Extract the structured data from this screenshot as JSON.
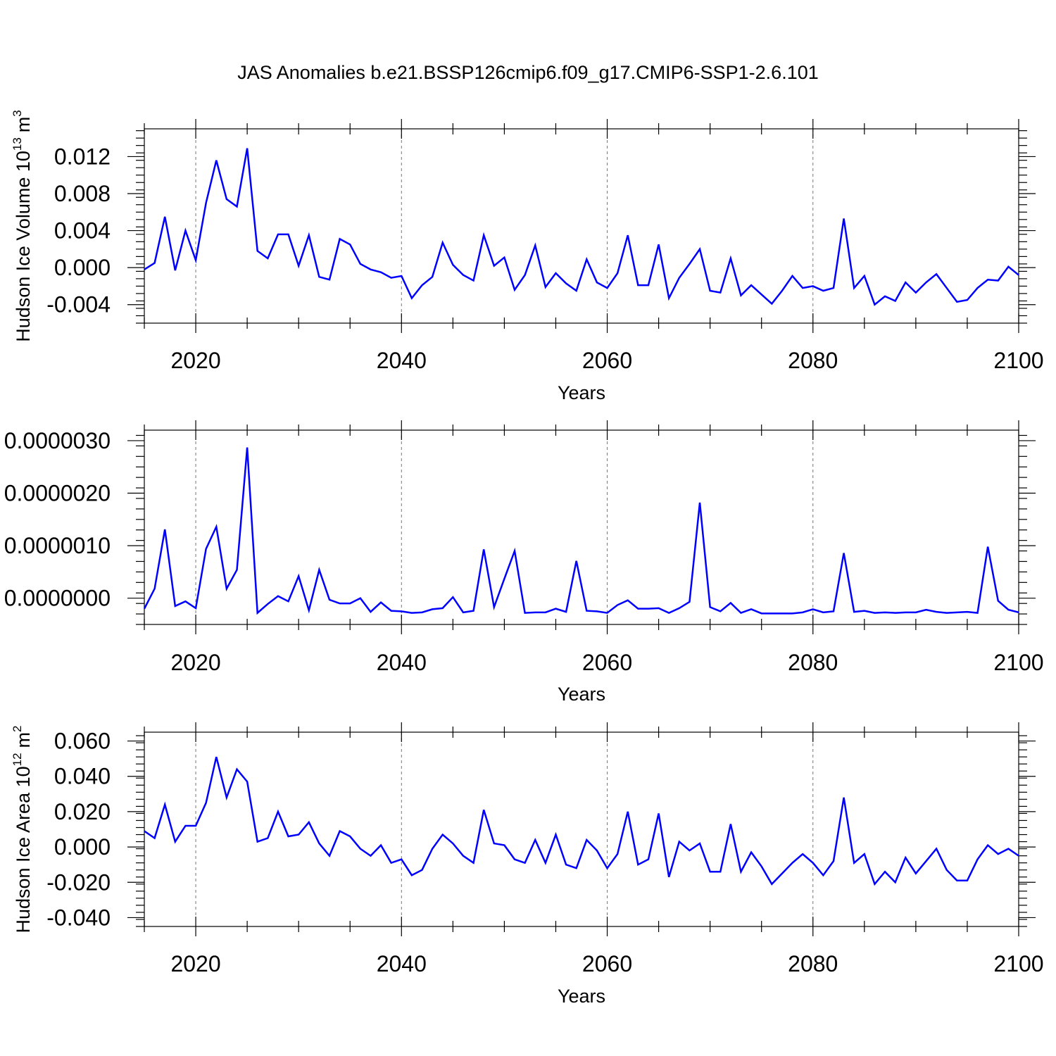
{
  "title": "JAS Anomalies b.e21.BSSP126cmip6.f09_g17.CMIP6-SSP1-2.6.101",
  "series_color": "#0000ff",
  "chart_data": [
    {
      "type": "line",
      "title": "",
      "xlabel": "Years",
      "ylabel": "Hudson Ice Volume 10",
      "ylabel_sup": "13",
      "ylabel_unit": "m",
      "ylabel_unit_sup": "3",
      "xlim": [
        2015,
        2100
      ],
      "ylim": [
        -0.006,
        0.015
      ],
      "grid": true,
      "x_ticks": [
        2020,
        2040,
        2060,
        2080,
        2100
      ],
      "y_ticks": [
        -0.004,
        0.0,
        0.004,
        0.008,
        0.012
      ],
      "x_tick_labels": [
        "2020",
        "2040",
        "2060",
        "2080",
        "2100"
      ],
      "y_tick_labels": [
        "-0.004",
        "0.000",
        "0.004",
        "0.008",
        "0.012"
      ],
      "x_start": 2015,
      "values": [
        -0.0002,
        0.0005,
        0.0055,
        -0.0003,
        0.004,
        0.0008,
        0.007,
        0.0116,
        0.0074,
        0.0066,
        0.0129,
        0.0018,
        0.001,
        0.0036,
        0.0036,
        0.0002,
        0.0035,
        -0.001,
        -0.0013,
        0.0031,
        0.0025,
        0.0004,
        -0.0002,
        -0.0005,
        -0.0011,
        -0.0009,
        -0.0033,
        -0.0019,
        -0.001,
        0.0027,
        0.0003,
        -0.0008,
        -0.0014,
        0.0035,
        0.0002,
        0.0011,
        -0.0024,
        -0.0008,
        0.0024,
        -0.0021,
        -0.0006,
        -0.0017,
        -0.0025,
        0.0009,
        -0.0016,
        -0.0022,
        -0.0006,
        0.0035,
        -0.0019,
        -0.0019,
        0.0025,
        -0.0033,
        -0.0011,
        0.0004,
        0.002,
        -0.0025,
        -0.0027,
        0.001,
        -0.003,
        -0.0019,
        -0.0029,
        -0.0039,
        -0.0025,
        -0.0009,
        -0.0022,
        -0.002,
        -0.0025,
        -0.0022,
        0.0053,
        -0.0022,
        -0.0009,
        -0.004,
        -0.0031,
        -0.0036,
        -0.0016,
        -0.0027,
        -0.0016,
        -0.0007,
        -0.0022,
        -0.0037,
        -0.0035,
        -0.0022,
        -0.0013,
        -0.0014,
        0.0001,
        -0.0008
      ]
    },
    {
      "type": "line",
      "title": "",
      "xlabel": "Years",
      "ylabel": "",
      "xlim": [
        2015,
        2100
      ],
      "ylim": [
        -5e-07,
        3.2e-06
      ],
      "grid": true,
      "x_ticks": [
        2020,
        2040,
        2060,
        2080,
        2100
      ],
      "y_ticks": [
        0.0,
        1e-06,
        2e-06,
        3e-06
      ],
      "x_tick_labels": [
        "2020",
        "2040",
        "2060",
        "2080",
        "2100"
      ],
      "y_tick_labels": [
        "0.0000000",
        "0.0000010",
        "0.0000020",
        "0.0000030"
      ],
      "x_start": 2015,
      "values": [
        -2e-07,
        1.8e-07,
        1.31e-06,
        -1.5e-07,
        -6e-08,
        -1.9e-07,
        9.4e-07,
        1.36e-06,
        1.8e-07,
        5.4e-07,
        2.87e-06,
        -2.8e-07,
        -1.1e-07,
        4e-08,
        -6e-08,
        4.2e-07,
        -2.3e-07,
        5.4e-07,
        -3e-08,
        -1e-07,
        -1e-07,
        0.0,
        -2.6e-07,
        -8e-08,
        -2.4e-07,
        -2.5e-07,
        -2.8e-07,
        -2.7e-07,
        -2.1e-07,
        -1.9e-07,
        2e-08,
        -2.7e-07,
        -2.4e-07,
        9.3e-07,
        -1.7e-07,
        3.7e-07,
        9e-07,
        -2.8e-07,
        -2.7e-07,
        -2.7e-07,
        -2e-07,
        -2.6e-07,
        7.1e-07,
        -2.4e-07,
        -2.5e-07,
        -2.8e-07,
        -1.3e-07,
        -4e-08,
        -2e-07,
        -2e-07,
        -1.9e-07,
        -2.8e-07,
        -1.9e-07,
        -7e-08,
        1.82e-06,
        -1.7e-07,
        -2.5e-07,
        -9e-08,
        -2.8e-07,
        -2.1e-07,
        -2.9e-07,
        -2.9e-07,
        -2.9e-07,
        -2.9e-07,
        -2.7e-07,
        -2.1e-07,
        -2.7e-07,
        -2.5e-07,
        8.6e-07,
        -2.6e-07,
        -2.4e-07,
        -2.8e-07,
        -2.7e-07,
        -2.8e-07,
        -2.7e-07,
        -2.7e-07,
        -2.2e-07,
        -2.6e-07,
        -2.8e-07,
        -2.7e-07,
        -2.6e-07,
        -2.8e-07,
        9.8e-07,
        -5e-08,
        -2.2e-07,
        -2.7e-07
      ]
    },
    {
      "type": "line",
      "title": "",
      "xlabel": "Years",
      "ylabel": "Hudson Ice Area 10",
      "ylabel_sup": "12",
      "ylabel_unit": "m",
      "ylabel_unit_sup": "2",
      "xlim": [
        2015,
        2100
      ],
      "ylim": [
        -0.045,
        0.065
      ],
      "grid": true,
      "x_ticks": [
        2020,
        2040,
        2060,
        2080,
        2100
      ],
      "y_ticks": [
        -0.04,
        -0.02,
        0.0,
        0.02,
        0.04,
        0.06
      ],
      "x_tick_labels": [
        "2020",
        "2040",
        "2060",
        "2080",
        "2100"
      ],
      "y_tick_labels": [
        "-0.040",
        "-0.020",
        "0.000",
        "0.020",
        "0.040",
        "0.060"
      ],
      "x_start": 2015,
      "values": [
        0.009,
        0.005,
        0.024,
        0.003,
        0.012,
        0.012,
        0.025,
        0.051,
        0.028,
        0.044,
        0.037,
        0.003,
        0.005,
        0.02,
        0.006,
        0.007,
        0.014,
        0.002,
        -0.005,
        0.009,
        0.006,
        -0.001,
        -0.005,
        0.001,
        -0.009,
        -0.007,
        -0.016,
        -0.013,
        -0.001,
        0.007,
        0.002,
        -0.005,
        -0.009,
        0.021,
        0.002,
        0.001,
        -0.007,
        -0.009,
        0.004,
        -0.009,
        0.007,
        -0.01,
        -0.012,
        0.004,
        -0.002,
        -0.012,
        -0.004,
        0.02,
        -0.01,
        -0.007,
        0.019,
        -0.017,
        0.003,
        -0.002,
        0.002,
        -0.014,
        -0.014,
        0.013,
        -0.014,
        -0.003,
        -0.011,
        -0.021,
        -0.015,
        -0.009,
        -0.004,
        -0.009,
        -0.016,
        -0.008,
        0.028,
        -0.009,
        -0.004,
        -0.021,
        -0.014,
        -0.02,
        -0.006,
        -0.015,
        -0.008,
        -0.001,
        -0.013,
        -0.019,
        -0.019,
        -0.007,
        0.001,
        -0.004,
        -0.001,
        -0.005
      ]
    }
  ]
}
